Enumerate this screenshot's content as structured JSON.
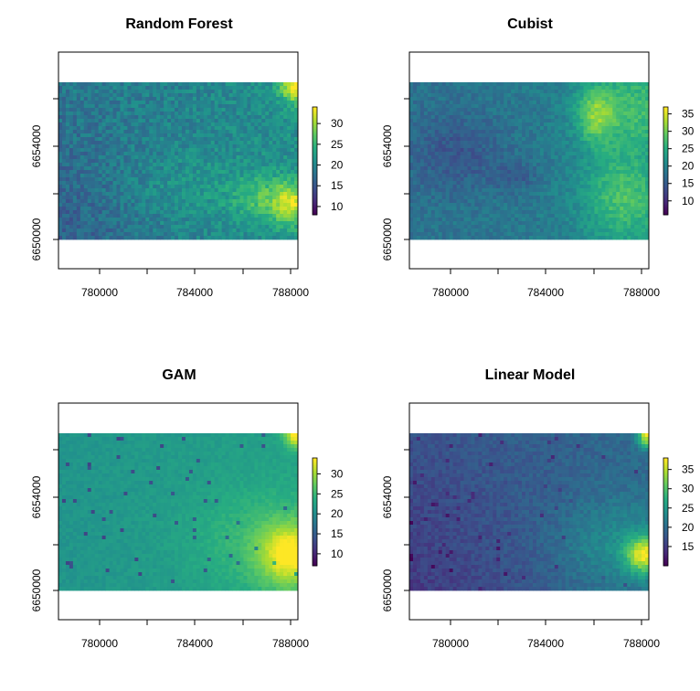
{
  "chart_data": [
    {
      "type": "heatmap",
      "title": "Random Forest",
      "xlabel": "",
      "ylabel": "",
      "x_ticks": [
        "780000",
        "784000",
        "788000"
      ],
      "y_ticks": [
        "6650000",
        "6654000"
      ],
      "legend_ticks": [
        "10",
        "15",
        "20",
        "25",
        "30"
      ],
      "value_range": [
        8,
        34
      ],
      "colormap": "viridis",
      "legend": "right"
    },
    {
      "type": "heatmap",
      "title": "Cubist",
      "xlabel": "",
      "ylabel": "",
      "x_ticks": [
        "780000",
        "784000",
        "788000"
      ],
      "y_ticks": [
        "6650000",
        "6654000"
      ],
      "legend_ticks": [
        "10",
        "15",
        "20",
        "25",
        "30",
        "35"
      ],
      "value_range": [
        6,
        37
      ],
      "colormap": "viridis",
      "legend": "right"
    },
    {
      "type": "heatmap",
      "title": "GAM",
      "xlabel": "",
      "ylabel": "",
      "x_ticks": [
        "780000",
        "784000",
        "788000"
      ],
      "y_ticks": [
        "6650000",
        "6654000"
      ],
      "legend_ticks": [
        "10",
        "15",
        "20",
        "25",
        "30"
      ],
      "value_range": [
        7,
        34
      ],
      "colormap": "viridis",
      "legend": "right"
    },
    {
      "type": "heatmap",
      "title": "Linear Model",
      "xlabel": "",
      "ylabel": "",
      "x_ticks": [
        "780000",
        "784000",
        "788000"
      ],
      "y_ticks": [
        "6650000",
        "6654000"
      ],
      "legend_ticks": [
        "15",
        "20",
        "25",
        "30",
        "35"
      ],
      "value_range": [
        10,
        38
      ],
      "colormap": "viridis",
      "legend": "right"
    }
  ],
  "colors": {
    "viridis": [
      "#440154",
      "#472c7a",
      "#3b518b",
      "#2c718e",
      "#21908d",
      "#27ad81",
      "#5cc863",
      "#aadc32",
      "#fde725"
    ],
    "axis": "#000000",
    "background": "#ffffff"
  }
}
